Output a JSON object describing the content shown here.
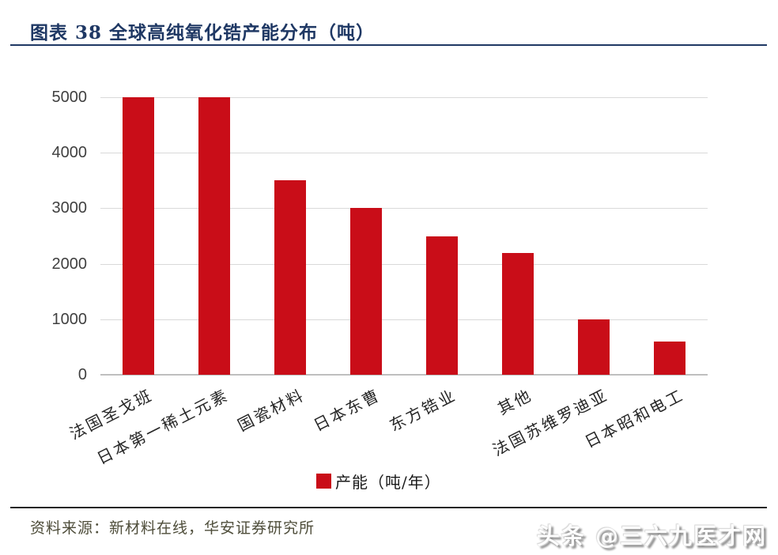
{
  "header": {
    "title": "图表 38 全球高纯氧化锆产能分布（吨）"
  },
  "chart_data": {
    "type": "bar",
    "title": "全球高纯氧化锆产能分布（吨）",
    "categories": [
      "法国圣戈班",
      "日本第一稀土元素",
      "国瓷材料",
      "日本东曹",
      "东方锆业",
      "其他",
      "法国苏维罗迪亚",
      "日本昭和电工"
    ],
    "values": [
      5000,
      5000,
      3500,
      3000,
      2500,
      2200,
      1000,
      600
    ],
    "series_name": "产能（吨/年）",
    "xlabel": "",
    "ylabel": "",
    "ylim": [
      0,
      5000
    ],
    "yticks": [
      0,
      1000,
      2000,
      3000,
      4000,
      5000
    ],
    "grid": "horizontal",
    "legend_position": "bottom",
    "bar_color": "#c90d18"
  },
  "legend": {
    "label": "产能（吨/年）"
  },
  "footer": {
    "source": "资料来源：新材料在线，华安证券研究所",
    "watermark": "头条 @三六九医才网"
  },
  "colors": {
    "title_navy": "#1f3864",
    "bar_red": "#c90d18",
    "gridline_gray": "#d9d9d9"
  }
}
